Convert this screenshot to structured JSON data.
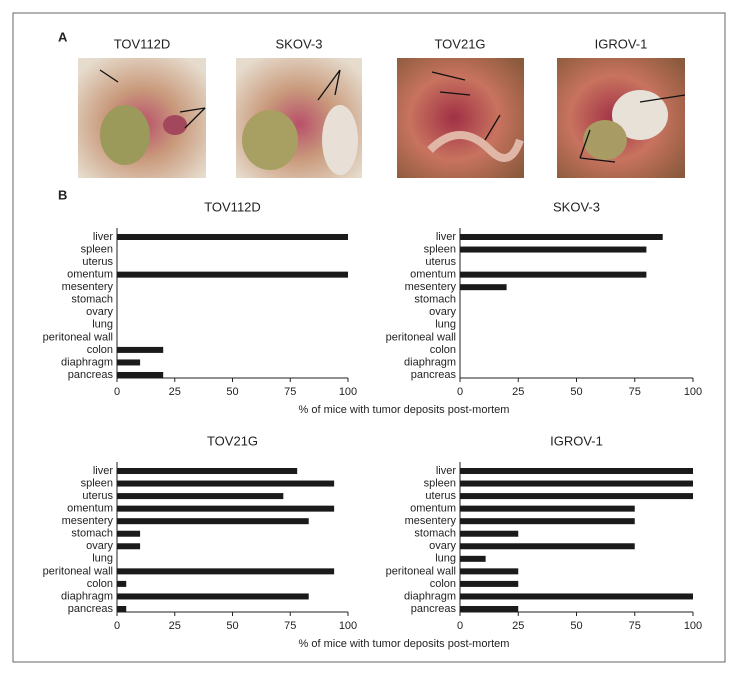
{
  "panel_a": {
    "label": "A",
    "photos": [
      {
        "title": "TOV112D"
      },
      {
        "title": "SKOV-3"
      },
      {
        "title": "TOV21G"
      },
      {
        "title": "IGROV-1"
      }
    ]
  },
  "panel_b": {
    "label": "B"
  },
  "chart_data": [
    {
      "type": "bar",
      "orientation": "horizontal",
      "title": "TOV112D",
      "color": "#1a1a1a",
      "categories": [
        "liver",
        "spleen",
        "uterus",
        "omentum",
        "mesentery",
        "stomach",
        "ovary",
        "lung",
        "peritoneal wall",
        "colon",
        "diaphragm",
        "pancreas"
      ],
      "values": [
        100,
        0,
        0,
        100,
        0,
        0,
        0,
        0,
        0,
        20,
        10,
        20
      ],
      "xlim": [
        0,
        100
      ],
      "xticks": [
        0,
        25,
        50,
        75,
        100
      ],
      "xlabel": "% of mice with tumor deposits post-mortem"
    },
    {
      "type": "bar",
      "orientation": "horizontal",
      "title": "SKOV-3",
      "color": "#1a1a1a",
      "categories": [
        "liver",
        "spleen",
        "uterus",
        "omentum",
        "mesentery",
        "stomach",
        "ovary",
        "lung",
        "peritoneal wall",
        "colon",
        "diaphragm",
        "pancreas"
      ],
      "values": [
        87,
        80,
        0,
        80,
        20,
        0,
        0,
        0,
        0,
        0,
        0,
        0
      ],
      "xlim": [
        0,
        100
      ],
      "xticks": [
        0,
        25,
        50,
        75,
        100
      ]
    },
    {
      "type": "bar",
      "orientation": "horizontal",
      "title": "TOV21G",
      "color": "#1a1a1a",
      "categories": [
        "liver",
        "spleen",
        "uterus",
        "omentum",
        "mesentery",
        "stomach",
        "ovary",
        "lung",
        "peritoneal wall",
        "colon",
        "diaphragm",
        "pancreas"
      ],
      "values": [
        78,
        94,
        72,
        94,
        83,
        10,
        10,
        0,
        94,
        4,
        83,
        4
      ],
      "xlim": [
        0,
        100
      ],
      "xticks": [
        0,
        25,
        50,
        75,
        100
      ],
      "xlabel": "% of mice with tumor deposits post-mortem"
    },
    {
      "type": "bar",
      "orientation": "horizontal",
      "title": "IGROV-1",
      "color": "#1a1a1a",
      "categories": [
        "liver",
        "spleen",
        "uterus",
        "omentum",
        "mesentery",
        "stomach",
        "ovary",
        "lung",
        "peritoneal wall",
        "colon",
        "diaphragm",
        "pancreas"
      ],
      "values": [
        100,
        100,
        100,
        75,
        75,
        25,
        75,
        11,
        25,
        25,
        100,
        25
      ],
      "xlim": [
        0,
        100
      ],
      "xticks": [
        0,
        25,
        50,
        75,
        100
      ]
    }
  ]
}
